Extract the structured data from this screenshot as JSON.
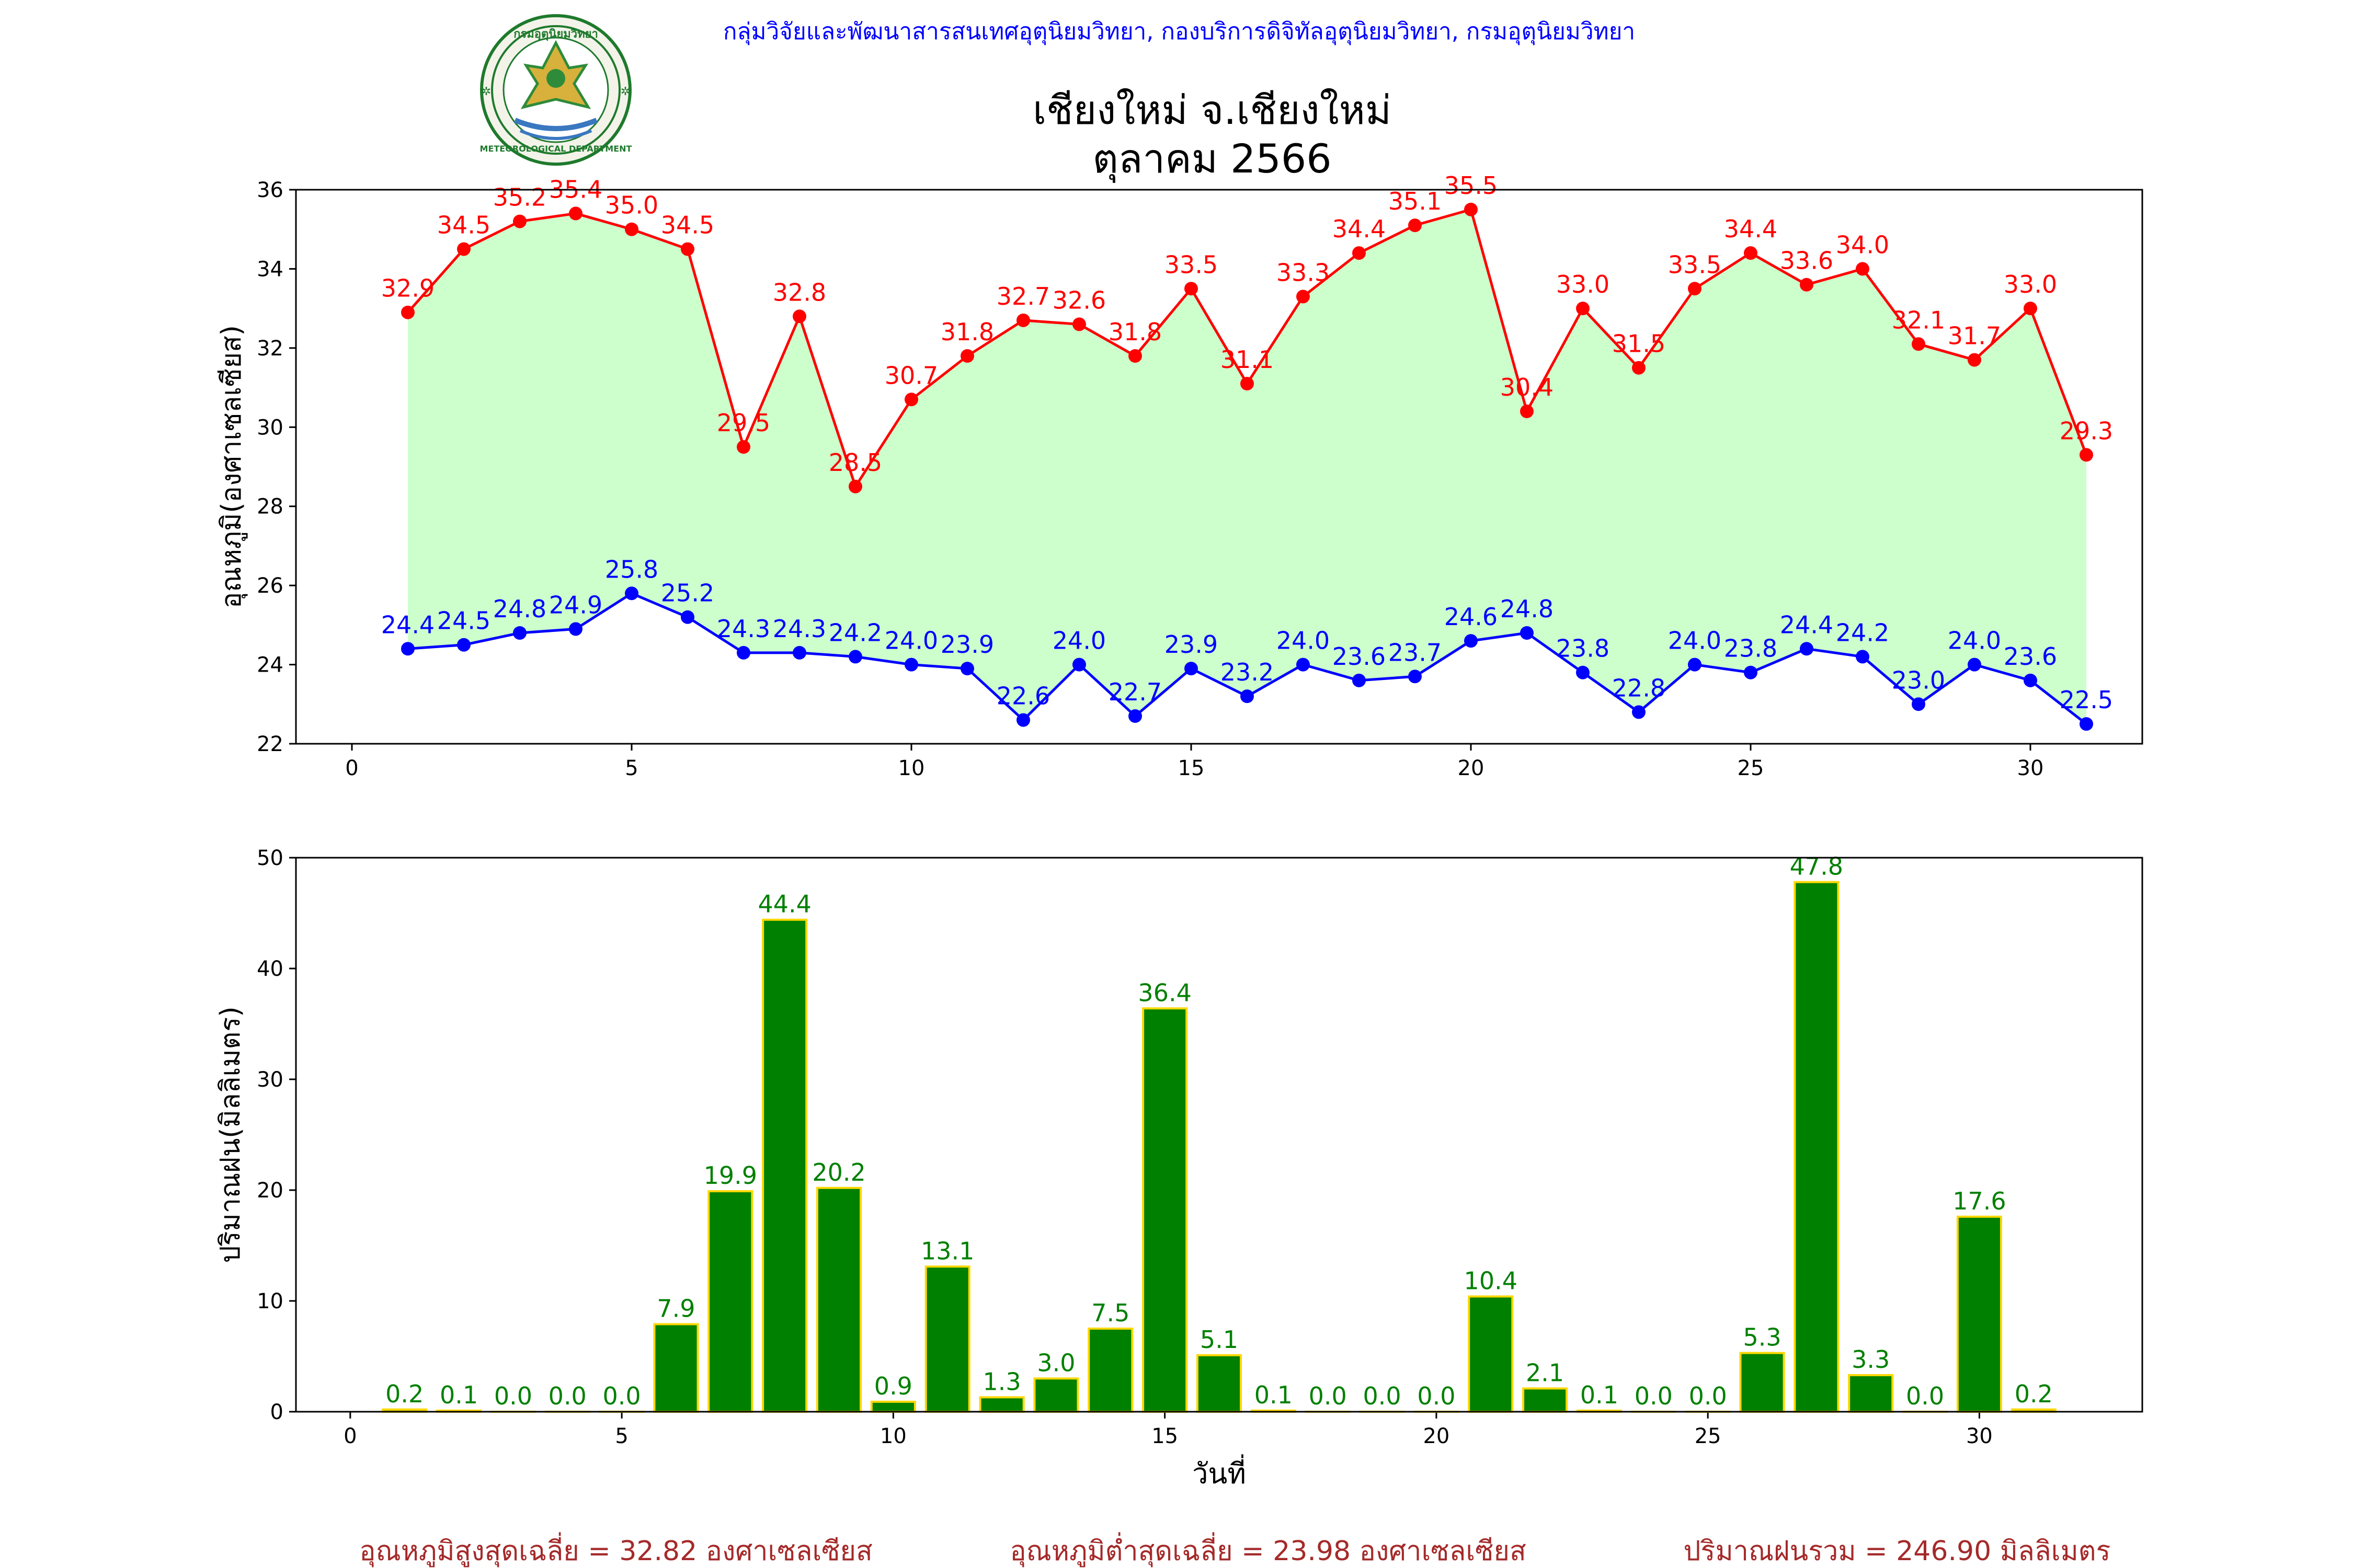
{
  "header": {
    "agency_line": "กลุ่มวิจัยและพัฒนาสารสนเทศอุตุนิยมวิทยา, กองบริการดิจิทัลอุตุนิยมวิทยา, กรมอุตุนิยมวิทยา",
    "title_line1": "เชียงใหม่ จ.เชียงใหม่",
    "title_line2": "ตุลาคม 2566",
    "logo_top_text": "กรมอุตุนิยมวิทยา",
    "logo_bottom_text": "METEOROLOGICAL DEPARTMENT"
  },
  "colors": {
    "max_temp": "#ff0000",
    "min_temp": "#0000ff",
    "fill": "#ccffcc",
    "rain_bar": "#008000",
    "rain_edge": "#ffd700",
    "rain_label": "#008000",
    "agency_text": "#0000ff",
    "footer_text": "#a52a2a"
  },
  "chart_data": [
    {
      "type": "line",
      "ylabel": "อุณหภูมิ(องศาเซลเซียส)",
      "xlabel": "",
      "xlim": [
        -1,
        32
      ],
      "ylim": [
        22,
        36
      ],
      "xticks": [
        0,
        5,
        10,
        15,
        20,
        25,
        30
      ],
      "yticks": [
        22,
        24,
        26,
        28,
        30,
        32,
        34,
        36
      ],
      "fill_between": true,
      "x": [
        1,
        2,
        3,
        4,
        5,
        6,
        7,
        8,
        9,
        10,
        11,
        12,
        13,
        14,
        15,
        16,
        17,
        18,
        19,
        20,
        21,
        22,
        23,
        24,
        25,
        26,
        27,
        28,
        29,
        30,
        31
      ],
      "series": [
        {
          "key": "max",
          "values": [
            32.9,
            34.5,
            35.2,
            35.4,
            35.0,
            34.5,
            29.5,
            32.8,
            28.5,
            30.7,
            31.8,
            32.7,
            32.6,
            31.8,
            33.5,
            31.1,
            33.3,
            34.4,
            35.1,
            35.5,
            30.4,
            33.0,
            31.5,
            33.5,
            34.4,
            33.6,
            34.0,
            32.1,
            31.7,
            33.0,
            29.3
          ]
        },
        {
          "key": "min",
          "values": [
            24.4,
            24.5,
            24.8,
            24.9,
            25.8,
            25.2,
            24.3,
            24.3,
            24.2,
            24.0,
            23.9,
            22.6,
            24.0,
            22.7,
            23.9,
            23.2,
            24.0,
            23.6,
            23.7,
            24.6,
            24.8,
            23.8,
            22.8,
            24.0,
            23.8,
            24.4,
            24.2,
            23.0,
            24.0,
            23.6,
            22.5
          ]
        }
      ]
    },
    {
      "type": "bar",
      "ylabel": "ปริมาณฝน(มิลลิเมตร)",
      "xlabel": "วันที่",
      "xlim": [
        -1,
        33
      ],
      "ylim": [
        0,
        50
      ],
      "xticks": [
        0,
        5,
        10,
        15,
        20,
        25,
        30
      ],
      "yticks": [
        0,
        10,
        20,
        30,
        40,
        50
      ],
      "x": [
        1,
        2,
        3,
        4,
        5,
        6,
        7,
        8,
        9,
        10,
        11,
        12,
        13,
        14,
        15,
        16,
        17,
        18,
        19,
        20,
        21,
        22,
        23,
        24,
        25,
        26,
        27,
        28,
        29,
        30,
        31
      ],
      "values": [
        0.2,
        0.1,
        0.0,
        0.0,
        0.0,
        7.9,
        19.9,
        44.4,
        20.2,
        0.9,
        13.1,
        1.3,
        3.0,
        7.5,
        36.4,
        5.1,
        0.1,
        0.0,
        0.0,
        0.0,
        10.4,
        2.1,
        0.1,
        0.0,
        0.0,
        5.3,
        47.8,
        3.3,
        0.0,
        17.6,
        0.2
      ]
    }
  ],
  "footer": {
    "avg_max": "อุณหภูมิสูงสุดเฉลี่ย = 32.82 องศาเซลเซียส",
    "avg_min": "อุณหภูมิต่ำสุดเฉลี่ย = 23.98 องศาเซลเซียส",
    "total_rain": "ปริมาณฝนรวม = 246.90 มิลลิเมตร"
  }
}
